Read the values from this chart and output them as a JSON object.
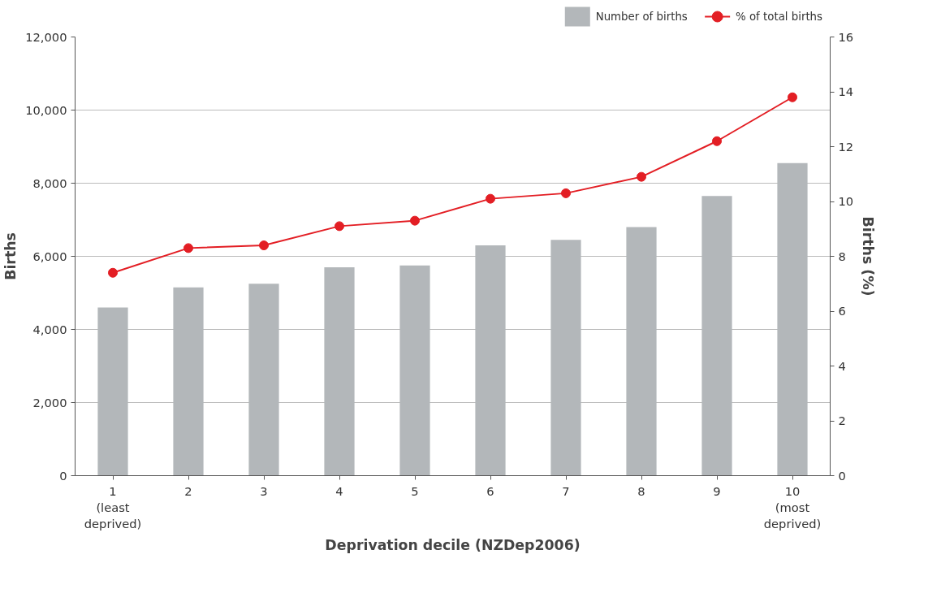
{
  "chart_data": {
    "type": "bar",
    "xlabel": "Deprivation decile (NZDep2006)",
    "ylabel": "Births",
    "y2label": "Births (%)",
    "categories": [
      "1\n(least\ndeprived)",
      "2",
      "3",
      "4",
      "5",
      "6",
      "7",
      "8",
      "9",
      "10\n(most\ndeprived)"
    ],
    "series": [
      {
        "name": "Number of births",
        "color": "#b3b7ba",
        "values": [
          4600,
          5150,
          5250,
          5700,
          5750,
          6300,
          6450,
          6800,
          7650,
          8550
        ]
      },
      {
        "name": "% of total births",
        "type": "line",
        "axis": "y2",
        "color": "#e31e24",
        "marker": "circle",
        "values": [
          7.4,
          8.3,
          8.4,
          9.1,
          9.3,
          10.1,
          10.3,
          10.9,
          12.2,
          13.8
        ]
      }
    ],
    "ylim": [
      0,
      12000
    ],
    "yticks": [
      {
        "value": 0,
        "label": "0"
      },
      {
        "value": 2000,
        "label": "2,000"
      },
      {
        "value": 4000,
        "label": "4,000"
      },
      {
        "value": 6000,
        "label": "6,000"
      },
      {
        "value": 8000,
        "label": "8,000"
      },
      {
        "value": 10000,
        "label": "10,000"
      },
      {
        "value": 12000,
        "label": "12,000"
      }
    ],
    "y2lim": [
      0,
      16
    ],
    "y2ticks": [
      0,
      2,
      4,
      6,
      8,
      10,
      12,
      14,
      16
    ],
    "grid": "y",
    "legend": "top right"
  }
}
